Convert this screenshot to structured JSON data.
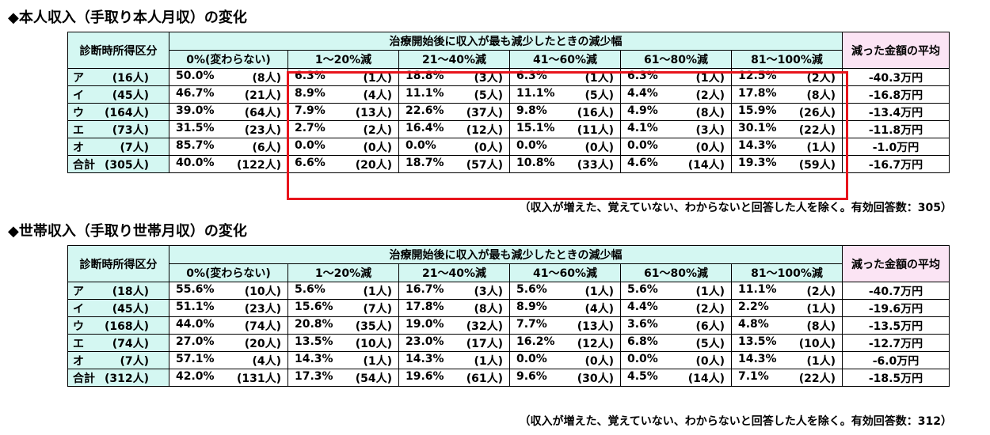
{
  "tables": [
    {
      "title": "◆本人収入（手取り本人月収）の変化",
      "corner_header": "診断時所得区分",
      "group_header": "治療開始後に収入が最も減少したときの減少幅",
      "avg_header": "減った金額の平均",
      "columns": [
        "0%(変わらない)",
        "1～20%減",
        "21～40%減",
        "41～60%減",
        "61～80%減",
        "81～100%減"
      ],
      "rows": [
        {
          "label": "ア",
          "count": "(16人)",
          "cells": [
            [
              "50.0%",
              "(8人)"
            ],
            [
              "6.3%",
              "(1人)"
            ],
            [
              "18.8%",
              "(3人)"
            ],
            [
              "6.3%",
              "(1人)"
            ],
            [
              "6.3%",
              "(1人)"
            ],
            [
              "12.5%",
              "(2人)"
            ]
          ],
          "avg": "-40.3万円"
        },
        {
          "label": "イ",
          "count": "(45人)",
          "cells": [
            [
              "46.7%",
              "(21人)"
            ],
            [
              "8.9%",
              "(4人)"
            ],
            [
              "11.1%",
              "(5人)"
            ],
            [
              "11.1%",
              "(5人)"
            ],
            [
              "4.4%",
              "(2人)"
            ],
            [
              "17.8%",
              "(8人)"
            ]
          ],
          "avg": "-16.8万円"
        },
        {
          "label": "ウ",
          "count": "(164人)",
          "cells": [
            [
              "39.0%",
              "(64人)"
            ],
            [
              "7.9%",
              "(13人)"
            ],
            [
              "22.6%",
              "(37人)"
            ],
            [
              "9.8%",
              "(16人)"
            ],
            [
              "4.9%",
              "(8人)"
            ],
            [
              "15.9%",
              "(26人)"
            ]
          ],
          "avg": "-13.4万円"
        },
        {
          "label": "エ",
          "count": "(73人)",
          "cells": [
            [
              "31.5%",
              "(23人)"
            ],
            [
              "2.7%",
              "(2人)"
            ],
            [
              "16.4%",
              "(12人)"
            ],
            [
              "15.1%",
              "(11人)"
            ],
            [
              "4.1%",
              "(3人)"
            ],
            [
              "30.1%",
              "(22人)"
            ]
          ],
          "avg": "-11.8万円"
        },
        {
          "label": "オ",
          "count": "(7人)",
          "cells": [
            [
              "85.7%",
              "(6人)"
            ],
            [
              "0.0%",
              "(0人)"
            ],
            [
              "0.0%",
              "(0人)"
            ],
            [
              "0.0%",
              "(0人)"
            ],
            [
              "0.0%",
              "(0人)"
            ],
            [
              "14.3%",
              "(1人)"
            ]
          ],
          "avg": "-1.0万円"
        },
        {
          "label": "合計",
          "count": "(305人)",
          "cells": [
            [
              "40.0%",
              "(122人)"
            ],
            [
              "6.6%",
              "(20人)"
            ],
            [
              "18.7%",
              "(57人)"
            ],
            [
              "10.8%",
              "(33人)"
            ],
            [
              "4.6%",
              "(14人)"
            ],
            [
              "19.3%",
              "(59人)"
            ]
          ],
          "avg": "-16.7万円"
        }
      ],
      "note": "（収入が増えた、覚えていない、わからないと回答した人を除く。有効回答数：305）"
    },
    {
      "title": "◆世帯収入（手取り世帯月収）の変化",
      "corner_header": "診断時所得区分",
      "group_header": "治療開始後に収入が最も減少したときの減少幅",
      "avg_header": "減った金額の平均",
      "columns": [
        "0%(変わらない)",
        "1～20%減",
        "21～40%減",
        "41～60%減",
        "61～80%減",
        "81～100%減"
      ],
      "rows": [
        {
          "label": "ア",
          "count": "(18人)",
          "cells": [
            [
              "55.6%",
              "(10人)"
            ],
            [
              "5.6%",
              "(1人)"
            ],
            [
              "16.7%",
              "(3人)"
            ],
            [
              "5.6%",
              "(1人)"
            ],
            [
              "5.6%",
              "(1人)"
            ],
            [
              "11.1%",
              "(2人)"
            ]
          ],
          "avg": "-40.7万円"
        },
        {
          "label": "イ",
          "count": "(45人)",
          "cells": [
            [
              "51.1%",
              "(23人)"
            ],
            [
              "15.6%",
              "(7人)"
            ],
            [
              "17.8%",
              "(8人)"
            ],
            [
              "8.9%",
              "(4人)"
            ],
            [
              "4.4%",
              "(2人)"
            ],
            [
              "2.2%",
              "(1人)"
            ]
          ],
          "avg": "-19.6万円"
        },
        {
          "label": "ウ",
          "count": "(168人)",
          "cells": [
            [
              "44.0%",
              "(74人)"
            ],
            [
              "20.8%",
              "(35人)"
            ],
            [
              "19.0%",
              "(32人)"
            ],
            [
              "7.7%",
              "(13人)"
            ],
            [
              "3.6%",
              "(6人)"
            ],
            [
              "4.8%",
              "(8人)"
            ]
          ],
          "avg": "-13.5万円"
        },
        {
          "label": "エ",
          "count": "(74人)",
          "cells": [
            [
              "27.0%",
              "(20人)"
            ],
            [
              "13.5%",
              "(10人)"
            ],
            [
              "23.0%",
              "(17人)"
            ],
            [
              "16.2%",
              "(12人)"
            ],
            [
              "6.8%",
              "(5人)"
            ],
            [
              "13.5%",
              "(10人)"
            ]
          ],
          "avg": "-12.7万円"
        },
        {
          "label": "オ",
          "count": "(7人)",
          "cells": [
            [
              "57.1%",
              "(4人)"
            ],
            [
              "14.3%",
              "(1人)"
            ],
            [
              "14.3%",
              "(1人)"
            ],
            [
              "0.0%",
              "(0人)"
            ],
            [
              "0.0%",
              "(0人)"
            ],
            [
              "14.3%",
              "(1人)"
            ]
          ],
          "avg": "-6.0万円"
        },
        {
          "label": "合計",
          "count": "(312人)",
          "cells": [
            [
              "42.0%",
              "(131人)"
            ],
            [
              "17.3%",
              "(54人)"
            ],
            [
              "19.6%",
              "(61人)"
            ],
            [
              "9.6%",
              "(30人)"
            ],
            [
              "4.5%",
              "(14人)"
            ],
            [
              "7.1%",
              "(22人)"
            ]
          ],
          "avg": "-18.5万円"
        }
      ],
      "note": "（収入が増えた、覚えていない、わからないと回答した人を除く。有効回答数：312）"
    }
  ],
  "highlight_color": "#e8141c"
}
